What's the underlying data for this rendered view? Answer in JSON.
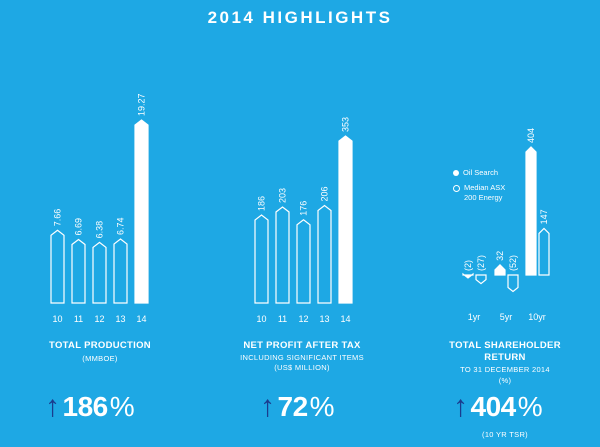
{
  "title": "2014 HIGHLIGHTS",
  "colors": {
    "background": "#1ea8e4",
    "bar_fill": "#ffffff",
    "arrow": "#1a3c8e"
  },
  "chart_data": [
    {
      "type": "bar",
      "title": "TOTAL PRODUCTION",
      "subtitle": [
        "(MMBOE)"
      ],
      "categories": [
        "10",
        "11",
        "12",
        "13",
        "14"
      ],
      "values": [
        7.66,
        6.69,
        6.38,
        6.74,
        19.27
      ],
      "labels": [
        "7.66",
        "6.69",
        "6.38",
        "6.74",
        "19.27"
      ],
      "highlight_index": 4,
      "ylim": [
        0,
        19.27
      ]
    },
    {
      "type": "bar",
      "title": "NET PROFIT AFTER TAX",
      "subtitle": [
        "INCLUDING SIGNIFICANT ITEMS",
        "(US$ MILLION)"
      ],
      "categories": [
        "10",
        "11",
        "12",
        "13",
        "14"
      ],
      "values": [
        186,
        203,
        176,
        206,
        353
      ],
      "labels": [
        "186",
        "203",
        "176",
        "206",
        "353"
      ],
      "highlight_index": 4,
      "ylim": [
        0,
        353
      ]
    },
    {
      "type": "bar",
      "title": [
        "TOTAL SHAREHOLDER",
        "RETURN"
      ],
      "subtitle": [
        "TO 31 DECEMBER 2014",
        "(%)"
      ],
      "categories": [
        "1yr",
        "5yr",
        "10yr"
      ],
      "series": [
        {
          "name": "Oil Search",
          "values": [
            -2,
            32,
            404
          ],
          "labels": [
            "(2)",
            "32",
            "404"
          ]
        },
        {
          "name": "Median ASX 200 Energy",
          "values": [
            -27,
            -52,
            147
          ],
          "labels": [
            "(27)",
            "(52)",
            "147"
          ]
        }
      ],
      "legend": [
        "Oil Search",
        "Median ASX 200 Energy"
      ],
      "legend_placement": "top-left"
    }
  ],
  "stats": [
    {
      "value": "186",
      "unit": "%",
      "note": ""
    },
    {
      "value": "72",
      "unit": "%",
      "note": ""
    },
    {
      "value": "404",
      "unit": "%",
      "note": "(10 YR TSR)"
    }
  ],
  "legend_text": {
    "oil_search": "Oil Search",
    "median_line1": "Median ASX",
    "median_line2": "200 Energy"
  }
}
